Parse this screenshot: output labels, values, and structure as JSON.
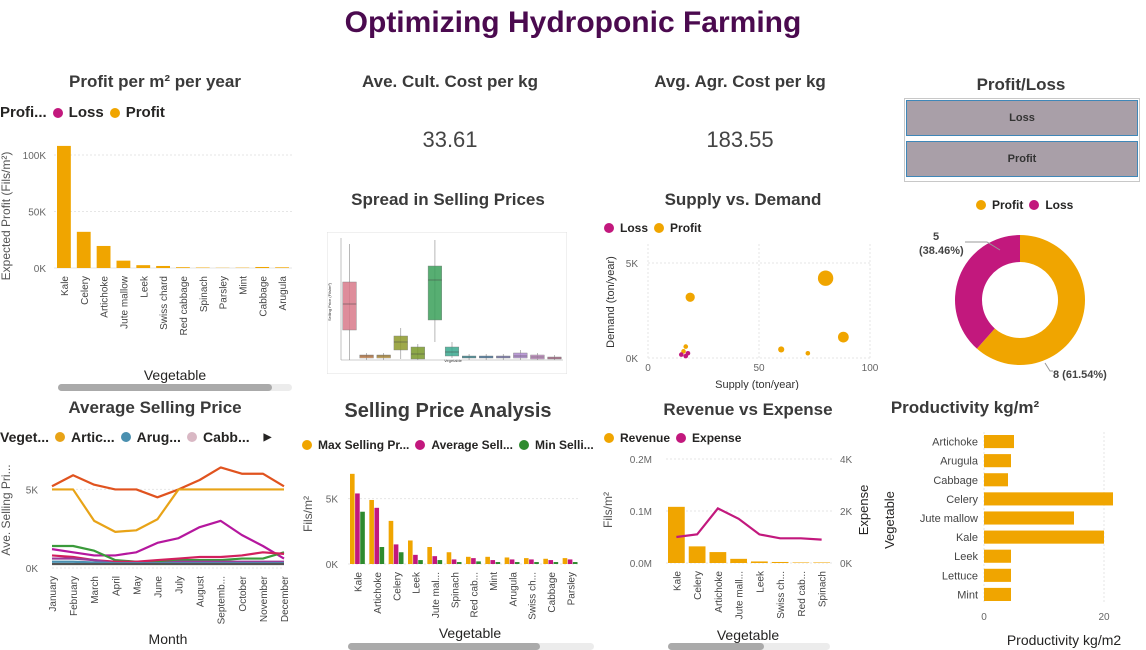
{
  "page_title": "Optimizing Hydroponic Farming",
  "colors": {
    "loss": "#c2187d",
    "profit": "#f0a500",
    "title": "#4b0a4f"
  },
  "profit_chart": {
    "title": "Profit per m² per year",
    "legend_title": "Profi...",
    "legend": [
      {
        "label": "Loss",
        "color": "#c2187d"
      },
      {
        "label": "Profit",
        "color": "#f0a500"
      }
    ],
    "y_label": "Expected Profit (Fils/m²)",
    "x_label": "Vegetable"
  },
  "cult_cost": {
    "title": "Ave. Cult. Cost per kg",
    "value": "33.61"
  },
  "agr_cost": {
    "title": "Avg. Agr. Cost per kg",
    "value": "183.55"
  },
  "profit_loss_slicer": {
    "title": "Profit/Loss",
    "options": [
      "Loss",
      "Profit"
    ]
  },
  "donut": {
    "legend": [
      {
        "label": "Profit",
        "color": "#f0a500"
      },
      {
        "label": "Loss",
        "color": "#c2187d"
      }
    ],
    "label_loss_1": "5",
    "label_loss_2": "(38.46%)",
    "label_profit": "8 (61.54%)"
  },
  "spread": {
    "title": "Spread in Selling Prices",
    "y_label": "Selling Price (Fils/m²)",
    "x_label": "Vegetable"
  },
  "supply_demand": {
    "title": "Supply vs. Demand",
    "legend": [
      {
        "label": "Loss",
        "color": "#c2187d"
      },
      {
        "label": "Profit",
        "color": "#f0a500"
      }
    ],
    "x_label": "Supply (ton/year)",
    "y_label": "Demand (ton/year)"
  },
  "avg_price": {
    "title": "Average Selling Price",
    "legend_title": "Veget...",
    "legend": [
      {
        "label": "Artic...",
        "color": "#e8a317"
      },
      {
        "label": "Arug...",
        "color": "#4a90b0"
      },
      {
        "label": "Cabb...",
        "color": "#d9b8c4"
      }
    ],
    "y_label": "Ave. Selling Pri...",
    "x_label": "Month"
  },
  "price_analysis": {
    "title": "Selling Price Analysis",
    "legend": [
      {
        "label": "Max Selling Pr...",
        "color": "#f0a500"
      },
      {
        "label": "Average Sell...",
        "color": "#c2187d"
      },
      {
        "label": "Min Selli...",
        "color": "#2e8b2e"
      }
    ],
    "y_label": "Fils/m²",
    "x_label": "Vegetable"
  },
  "rev_exp": {
    "title": "Revenue vs Expense",
    "legend": [
      {
        "label": "Revenue",
        "color": "#f0a500"
      },
      {
        "label": "Expense",
        "color": "#c2187d"
      }
    ],
    "y_label": "Fils/m²",
    "y2_label": "Expense",
    "x_label": "Vegetable"
  },
  "productivity": {
    "title": "Productivity kg/m²",
    "y_label": "Vegetable",
    "x_label": "Productivity kg/m2"
  },
  "chart_data": [
    {
      "type": "bar",
      "title": "Profit per m² per year",
      "xlabel": "Vegetable",
      "ylabel": "Expected Profit (Fils/m²)",
      "categories": [
        "Kale",
        "Celery",
        "Artichoke",
        "Jute mallow",
        "Leek",
        "Swiss chard",
        "Red cabbage",
        "Spinach",
        "Parsley",
        "Mint",
        "Cabbage",
        "Arugula"
      ],
      "values": [
        108000,
        32000,
        19500,
        6500,
        2500,
        1800,
        700,
        400,
        200,
        300,
        900,
        600
      ],
      "yticks": [
        "0K",
        "50K",
        "100K"
      ],
      "ylim": [
        0,
        115000
      ]
    },
    {
      "type": "pie",
      "title": "Profit/Loss",
      "categories": [
        "Profit",
        "Loss"
      ],
      "values": [
        8,
        5
      ]
    },
    {
      "type": "scatter",
      "title": "Supply vs. Demand",
      "xlabel": "Supply (ton/year)",
      "ylabel": "Demand (ton/year)",
      "xlim": [
        0,
        100
      ],
      "ylim": [
        0,
        6000
      ],
      "xticks": [
        "0",
        "50",
        "100"
      ],
      "yticks": [
        "0K",
        "5K"
      ],
      "series": [
        {
          "name": "Profit",
          "points": [
            [
              19,
              3200,
              6
            ],
            [
              80,
              4200,
              10
            ],
            [
              88,
              1100,
              7
            ],
            [
              60,
              450,
              4
            ],
            [
              72,
              250,
              3
            ],
            [
              17,
              600,
              3
            ],
            [
              16,
              350,
              3
            ]
          ]
        },
        {
          "name": "Loss",
          "points": [
            [
              15,
              180,
              3
            ],
            [
              17,
              100,
              3
            ],
            [
              18,
              250,
              3
            ]
          ]
        }
      ]
    },
    {
      "type": "line",
      "title": "Average Selling Price",
      "xlabel": "Month",
      "ylabel": "Ave. Selling Pri...",
      "categories": [
        "January",
        "February",
        "March",
        "April",
        "May",
        "June",
        "July",
        "August",
        "Septemb...",
        "October",
        "November",
        "December"
      ],
      "yticks": [
        "0K",
        "5K"
      ],
      "ylim": [
        0,
        7000
      ],
      "series": [
        {
          "color": "#e0531f",
          "values": [
            5200,
            5900,
            5300,
            5000,
            5000,
            4500,
            5000,
            5600,
            6400,
            6000,
            6000,
            5200
          ]
        },
        {
          "color": "#e8a317",
          "values": [
            5000,
            5000,
            3000,
            2300,
            2400,
            3100,
            5000,
            5000,
            5000,
            5000,
            5000,
            5000
          ]
        },
        {
          "color": "#b5179e",
          "values": [
            1200,
            1000,
            800,
            800,
            1000,
            1600,
            1900,
            2600,
            3000,
            2100,
            1400,
            600
          ]
        },
        {
          "color": "#3a9a3a",
          "values": [
            1400,
            1400,
            1100,
            500,
            400,
            400,
            500,
            500,
            500,
            600,
            600,
            1000
          ]
        },
        {
          "color": "#d21f5e",
          "values": [
            800,
            700,
            500,
            400,
            400,
            500,
            600,
            700,
            700,
            800,
            1000,
            900
          ]
        },
        {
          "color": "#9a3a9a",
          "values": [
            600,
            600,
            500,
            300,
            300,
            300,
            400,
            400,
            400,
            400,
            400,
            400
          ]
        },
        {
          "color": "#4a90b0",
          "values": [
            400,
            400,
            350,
            300,
            300,
            300,
            300,
            300,
            300,
            300,
            300,
            300
          ]
        },
        {
          "color": "#555555",
          "values": [
            250,
            250,
            250,
            250,
            250,
            250,
            250,
            250,
            250,
            250,
            250,
            250
          ]
        }
      ]
    },
    {
      "type": "bar",
      "title": "Selling Price Analysis",
      "xlabel": "Vegetable",
      "ylabel": "Fils/m²",
      "categories": [
        "Kale",
        "Artichoke",
        "Celery",
        "Leek",
        "Jute mal...",
        "Spinach",
        "Red cab...",
        "Mint",
        "Arugula",
        "Swiss ch...",
        "Cabbage",
        "Parsley"
      ],
      "yticks": [
        "0K",
        "5K"
      ],
      "ylim": [
        0,
        7500
      ],
      "series": [
        {
          "name": "Max Selling Pr...",
          "values": [
            6900,
            4900,
            3300,
            1800,
            1300,
            900,
            550,
            550,
            500,
            450,
            400,
            450
          ]
        },
        {
          "name": "Average Sell...",
          "values": [
            5400,
            4300,
            1500,
            700,
            600,
            350,
            450,
            300,
            350,
            350,
            300,
            350
          ]
        },
        {
          "name": "Min Selli...",
          "values": [
            4000,
            1300,
            900,
            300,
            300,
            150,
            200,
            150,
            150,
            150,
            150,
            150
          ]
        }
      ]
    },
    {
      "type": "bar",
      "title": "Revenue vs Expense",
      "xlabel": "Vegetable",
      "ylabel": "Fils/m²",
      "categories": [
        "Kale",
        "Celery",
        "Artichoke",
        "Jute mall...",
        "Leek",
        "Swiss ch...",
        "Red cab...",
        "Spinach"
      ],
      "yticks": [
        "0.0M",
        "0.1M",
        "0.2M"
      ],
      "ylim": [
        0,
        0.2
      ],
      "y2ticks": [
        "0K",
        "2K",
        "4K"
      ],
      "y2lim": [
        0,
        4000
      ],
      "series": [
        {
          "name": "Revenue",
          "values": [
            0.108,
            0.032,
            0.021,
            0.008,
            0.003,
            0.002,
            0.001,
            0.001
          ]
        },
        {
          "name": "Expense",
          "axis": "secondary",
          "values": [
            1000,
            1100,
            2100,
            1700,
            1100,
            950,
            950,
            900
          ]
        }
      ]
    },
    {
      "type": "bar",
      "title": "Productivity kg/m²",
      "xlabel": "Productivity kg/m2",
      "ylabel": "Vegetable",
      "orientation": "horizontal",
      "categories": [
        "Artichoke",
        "Arugula",
        "Cabbage",
        "Celery",
        "Jute mallow",
        "Kale",
        "Leek",
        "Lettuce",
        "Mint"
      ],
      "values": [
        5,
        4.5,
        4,
        21.5,
        15,
        20,
        4.5,
        4.5,
        4.5
      ],
      "xticks": [
        "0",
        "20"
      ],
      "xlim": [
        0,
        24
      ]
    }
  ]
}
